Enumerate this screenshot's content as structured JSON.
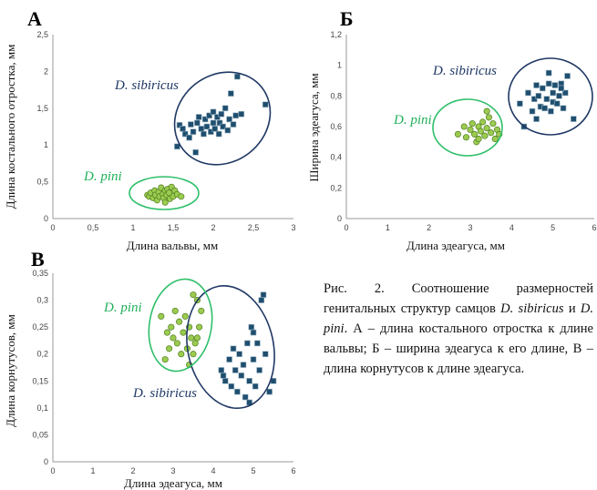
{
  "caption": {
    "fig": "Рис. 2.",
    "part1": "Соотношение размерностей генитальных структур самцов",
    "sp1": "D. sibiricus",
    "conj": "и",
    "sp2": "D. pini",
    "part2": ". А – длина костального отростка к длине вальвы; Б – ширина эдеагуса к его длине, В – длина корнутусов к длине эдеагуса."
  },
  "colors": {
    "sibiricus": "#1f3864",
    "pini": "#6aa84f",
    "pini_ellipse": "#2fbf6a",
    "pini_text": "#22b05a",
    "sibiricus_marker": "#1f4e6e",
    "pini_marker": "#9bcb4f"
  },
  "chart_data": [
    {
      "id": "A",
      "type": "scatter",
      "panel_label": "А",
      "xlabel": "Длина вальвы, мм",
      "ylabel": "Длина костального отростка, мм",
      "xlim": [
        0,
        3
      ],
      "ylim": [
        0,
        2.5
      ],
      "xticks": [
        "0",
        "0,5",
        "1",
        "1,5",
        "2",
        "2,5",
        "3"
      ],
      "yticks": [
        "0",
        "0,5",
        "1",
        "1,5",
        "2",
        "2,5"
      ],
      "series": [
        {
          "name": "D. sibiricus",
          "marker": "square",
          "points": [
            [
              1.55,
              0.98
            ],
            [
              1.58,
              1.27
            ],
            [
              1.62,
              1.22
            ],
            [
              1.65,
              1.15
            ],
            [
              1.7,
              1.1
            ],
            [
              1.72,
              1.28
            ],
            [
              1.75,
              1.18
            ],
            [
              1.78,
              0.9
            ],
            [
              1.8,
              1.3
            ],
            [
              1.82,
              1.38
            ],
            [
              1.85,
              1.22
            ],
            [
              1.88,
              1.15
            ],
            [
              1.9,
              1.35
            ],
            [
              1.92,
              1.25
            ],
            [
              1.95,
              1.4
            ],
            [
              1.97,
              1.18
            ],
            [
              2.0,
              1.3
            ],
            [
              2.0,
              1.45
            ],
            [
              2.02,
              1.22
            ],
            [
              2.05,
              1.38
            ],
            [
              2.07,
              1.15
            ],
            [
              2.08,
              1.3
            ],
            [
              2.1,
              1.42
            ],
            [
              2.12,
              1.25
            ],
            [
              2.15,
              1.5
            ],
            [
              2.18,
              1.2
            ],
            [
              2.2,
              1.35
            ],
            [
              2.22,
              1.7
            ],
            [
              2.25,
              1.28
            ],
            [
              2.28,
              1.4
            ],
            [
              2.3,
              1.93
            ],
            [
              2.35,
              1.42
            ],
            [
              2.65,
              1.55
            ]
          ]
        },
        {
          "name": "D. pini",
          "marker": "circle",
          "points": [
            [
              1.18,
              0.32
            ],
            [
              1.2,
              0.3
            ],
            [
              1.22,
              0.35
            ],
            [
              1.25,
              0.28
            ],
            [
              1.27,
              0.38
            ],
            [
              1.28,
              0.32
            ],
            [
              1.3,
              0.25
            ],
            [
              1.32,
              0.36
            ],
            [
              1.33,
              0.3
            ],
            [
              1.35,
              0.42
            ],
            [
              1.37,
              0.33
            ],
            [
              1.38,
              0.28
            ],
            [
              1.4,
              0.38
            ],
            [
              1.4,
              0.22
            ],
            [
              1.42,
              0.32
            ],
            [
              1.43,
              0.4
            ],
            [
              1.45,
              0.35
            ],
            [
              1.46,
              0.27
            ],
            [
              1.48,
              0.43
            ],
            [
              1.5,
              0.3
            ],
            [
              1.52,
              0.38
            ],
            [
              1.55,
              0.33
            ],
            [
              1.6,
              0.3
            ]
          ]
        }
      ],
      "labels": [
        {
          "text": "D. sibiricus",
          "color": "#1f3864"
        },
        {
          "text": "D. pini",
          "color": "#22b05a"
        }
      ]
    },
    {
      "id": "B",
      "type": "scatter",
      "panel_label": "Б",
      "xlabel": "Длина эдеагуса, мм",
      "ylabel": "Ширина эдеагуса, мм",
      "xlim": [
        0,
        6
      ],
      "ylim": [
        0,
        1.2
      ],
      "xticks": [
        "0",
        "1",
        "2",
        "3",
        "4",
        "5",
        "6"
      ],
      "yticks": [
        "0",
        "0,2",
        "0,4",
        "0,6",
        "0,8",
        "1",
        "1,2"
      ],
      "series": [
        {
          "name": "D. sibiricus",
          "marker": "square",
          "points": [
            [
              4.2,
              0.75
            ],
            [
              4.3,
              0.6
            ],
            [
              4.4,
              0.82
            ],
            [
              4.5,
              0.7
            ],
            [
              4.55,
              0.78
            ],
            [
              4.6,
              0.65
            ],
            [
              4.65,
              0.8
            ],
            [
              4.7,
              0.73
            ],
            [
              4.75,
              0.85
            ],
            [
              4.8,
              0.72
            ],
            [
              4.85,
              0.78
            ],
            [
              4.9,
              0.88
            ],
            [
              4.9,
              0.95
            ],
            [
              4.95,
              0.7
            ],
            [
              5.0,
              0.82
            ],
            [
              5.0,
              0.76
            ],
            [
              5.05,
              0.87
            ],
            [
              5.1,
              0.75
            ],
            [
              5.15,
              0.8
            ],
            [
              5.2,
              0.88
            ],
            [
              5.25,
              0.72
            ],
            [
              5.3,
              0.82
            ],
            [
              5.35,
              0.93
            ],
            [
              5.5,
              0.65
            ],
            [
              5.2,
              0.85
            ],
            [
              4.6,
              0.87
            ]
          ]
        },
        {
          "name": "D. pini",
          "marker": "circle",
          "points": [
            [
              2.7,
              0.55
            ],
            [
              2.85,
              0.6
            ],
            [
              2.9,
              0.53
            ],
            [
              3.0,
              0.58
            ],
            [
              3.05,
              0.62
            ],
            [
              3.1,
              0.55
            ],
            [
              3.15,
              0.5
            ],
            [
              3.2,
              0.6
            ],
            [
              3.25,
              0.57
            ],
            [
              3.3,
              0.63
            ],
            [
              3.35,
              0.54
            ],
            [
              3.4,
              0.59
            ],
            [
              3.45,
              0.66
            ],
            [
              3.5,
              0.56
            ],
            [
              3.55,
              0.62
            ],
            [
              3.6,
              0.52
            ],
            [
              3.65,
              0.58
            ],
            [
              3.7,
              0.55
            ],
            [
              3.4,
              0.7
            ],
            [
              3.2,
              0.52
            ]
          ]
        }
      ],
      "labels": [
        {
          "text": "D. sibiricus",
          "color": "#1f3864"
        },
        {
          "text": "D. pini",
          "color": "#22b05a"
        }
      ]
    },
    {
      "id": "C",
      "type": "scatter",
      "panel_label": "В",
      "xlabel": "Длина эдеагуса, мм",
      "ylabel": "Длина корнутусов, мм",
      "xlim": [
        0,
        6
      ],
      "ylim": [
        0,
        0.35
      ],
      "xticks": [
        "0",
        "1",
        "2",
        "3",
        "4",
        "5",
        "6"
      ],
      "yticks": [
        "0",
        "0,05",
        "0,1",
        "0,15",
        "0,2",
        "0,25",
        "0,3",
        "0,35"
      ],
      "series": [
        {
          "name": "D. sibiricus",
          "marker": "square",
          "points": [
            [
              4.2,
              0.17
            ],
            [
              4.25,
              0.16
            ],
            [
              4.3,
              0.15
            ],
            [
              4.4,
              0.19
            ],
            [
              4.45,
              0.14
            ],
            [
              4.5,
              0.21
            ],
            [
              4.55,
              0.17
            ],
            [
              4.6,
              0.13
            ],
            [
              4.65,
              0.2
            ],
            [
              4.7,
              0.16
            ],
            [
              4.75,
              0.18
            ],
            [
              4.8,
              0.12
            ],
            [
              4.85,
              0.22
            ],
            [
              4.9,
              0.15
            ],
            [
              4.9,
              0.11
            ],
            [
              4.95,
              0.25
            ],
            [
              5.0,
              0.19
            ],
            [
              5.05,
              0.14
            ],
            [
              5.1,
              0.22
            ],
            [
              5.15,
              0.17
            ],
            [
              5.2,
              0.3
            ],
            [
              5.25,
              0.31
            ],
            [
              5.3,
              0.2
            ],
            [
              5.4,
              0.13
            ],
            [
              5.5,
              0.15
            ],
            [
              5.0,
              0.24
            ]
          ]
        },
        {
          "name": "D. pini",
          "marker": "circle",
          "points": [
            [
              2.7,
              0.27
            ],
            [
              2.8,
              0.19
            ],
            [
              2.85,
              0.24
            ],
            [
              2.9,
              0.21
            ],
            [
              2.95,
              0.25
            ],
            [
              3.0,
              0.23
            ],
            [
              3.05,
              0.28
            ],
            [
              3.1,
              0.22
            ],
            [
              3.15,
              0.26
            ],
            [
              3.2,
              0.2
            ],
            [
              3.25,
              0.24
            ],
            [
              3.3,
              0.27
            ],
            [
              3.35,
              0.21
            ],
            [
              3.4,
              0.25
            ],
            [
              3.45,
              0.23
            ],
            [
              3.5,
              0.31
            ],
            [
              3.55,
              0.22
            ],
            [
              3.6,
              0.3
            ],
            [
              3.65,
              0.25
            ],
            [
              3.7,
              0.28
            ],
            [
              3.4,
              0.18
            ],
            [
              3.5,
              0.2
            ],
            [
              3.6,
              0.23
            ]
          ]
        }
      ],
      "labels": [
        {
          "text": "D. pini",
          "color": "#22b05a"
        },
        {
          "text": "D. sibiricus",
          "color": "#1f3864"
        }
      ]
    }
  ]
}
